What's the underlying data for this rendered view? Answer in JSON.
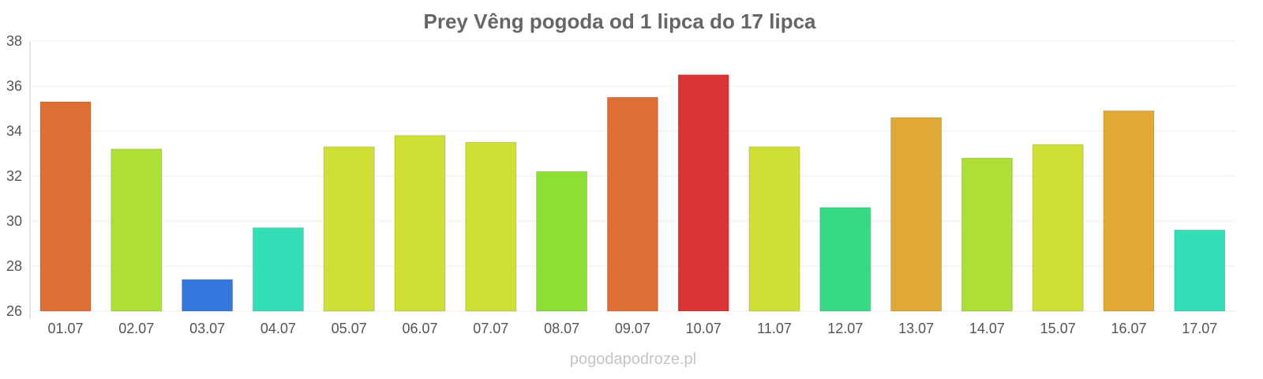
{
  "title": "Prey Vêng pogoda od 1 lipca do 17 lipca",
  "watermark": "pogodapodroze.pl",
  "chart_data": {
    "type": "bar",
    "title": "Prey Vêng pogoda od 1 lipca do 17 lipca",
    "xlabel": "",
    "ylabel": "",
    "ylim": [
      26,
      38
    ],
    "yticks": [
      "26",
      "28",
      "30",
      "32",
      "34",
      "36",
      "38"
    ],
    "grid": true,
    "categories": [
      "01.07",
      "02.07",
      "03.07",
      "04.07",
      "05.07",
      "06.07",
      "07.07",
      "08.07",
      "09.07",
      "10.07",
      "11.07",
      "12.07",
      "13.07",
      "14.07",
      "15.07",
      "16.07",
      "17.07"
    ],
    "values": [
      35.3,
      33.2,
      27.4,
      29.7,
      33.3,
      33.8,
      33.5,
      32.2,
      35.5,
      36.5,
      33.3,
      30.6,
      34.6,
      32.8,
      33.4,
      34.9,
      29.6
    ],
    "colors": [
      "#de6e34",
      "#addf34",
      "#3478de",
      "#34dfb8",
      "#d0df34",
      "#d0df34",
      "#d0df34",
      "#8ddf34",
      "#de6e34",
      "#db3434",
      "#d0df34",
      "#34db84",
      "#dfa934",
      "#addf34",
      "#d0df34",
      "#dfa934",
      "#34dfb8"
    ]
  }
}
